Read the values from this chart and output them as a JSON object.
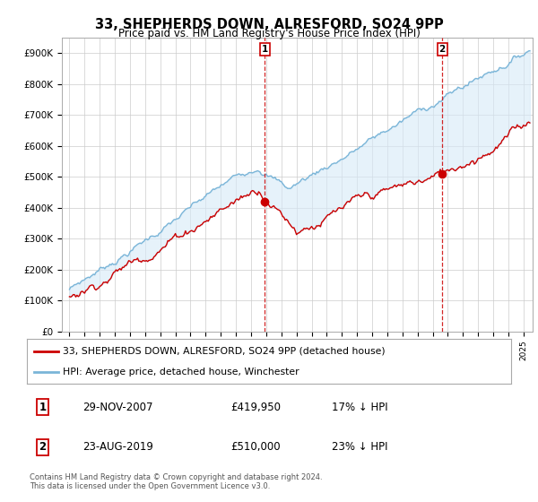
{
  "title": "33, SHEPHERDS DOWN, ALRESFORD, SO24 9PP",
  "subtitle": "Price paid vs. HM Land Registry's House Price Index (HPI)",
  "legend_property": "33, SHEPHERDS DOWN, ALRESFORD, SO24 9PP (detached house)",
  "legend_hpi": "HPI: Average price, detached house, Winchester",
  "sale1_date": "29-NOV-2007",
  "sale1_price": "£419,950",
  "sale1_hpi": "17% ↓ HPI",
  "sale1_year": 2007.917,
  "sale1_value": 419950,
  "sale2_date": "23-AUG-2019",
  "sale2_price": "£510,000",
  "sale2_hpi": "23% ↓ HPI",
  "sale2_year": 2019.625,
  "sale2_value": 510000,
  "property_color": "#cc0000",
  "hpi_color": "#7ab5d8",
  "fill_color": "#d6eaf8",
  "vline_color": "#cc0000",
  "marker_color": "#cc0000",
  "ylim": [
    0,
    950000
  ],
  "yticks": [
    0,
    100000,
    200000,
    300000,
    400000,
    500000,
    600000,
    700000,
    800000,
    900000
  ],
  "ytick_labels": [
    "£0",
    "£100K",
    "£200K",
    "£300K",
    "£400K",
    "£500K",
    "£600K",
    "£700K",
    "£800K",
    "£900K"
  ],
  "footer": "Contains HM Land Registry data © Crown copyright and database right 2024.\nThis data is licensed under the Open Government Licence v3.0.",
  "background_color": "#ffffff",
  "plot_bg_color": "#ffffff",
  "grid_color": "#cccccc"
}
